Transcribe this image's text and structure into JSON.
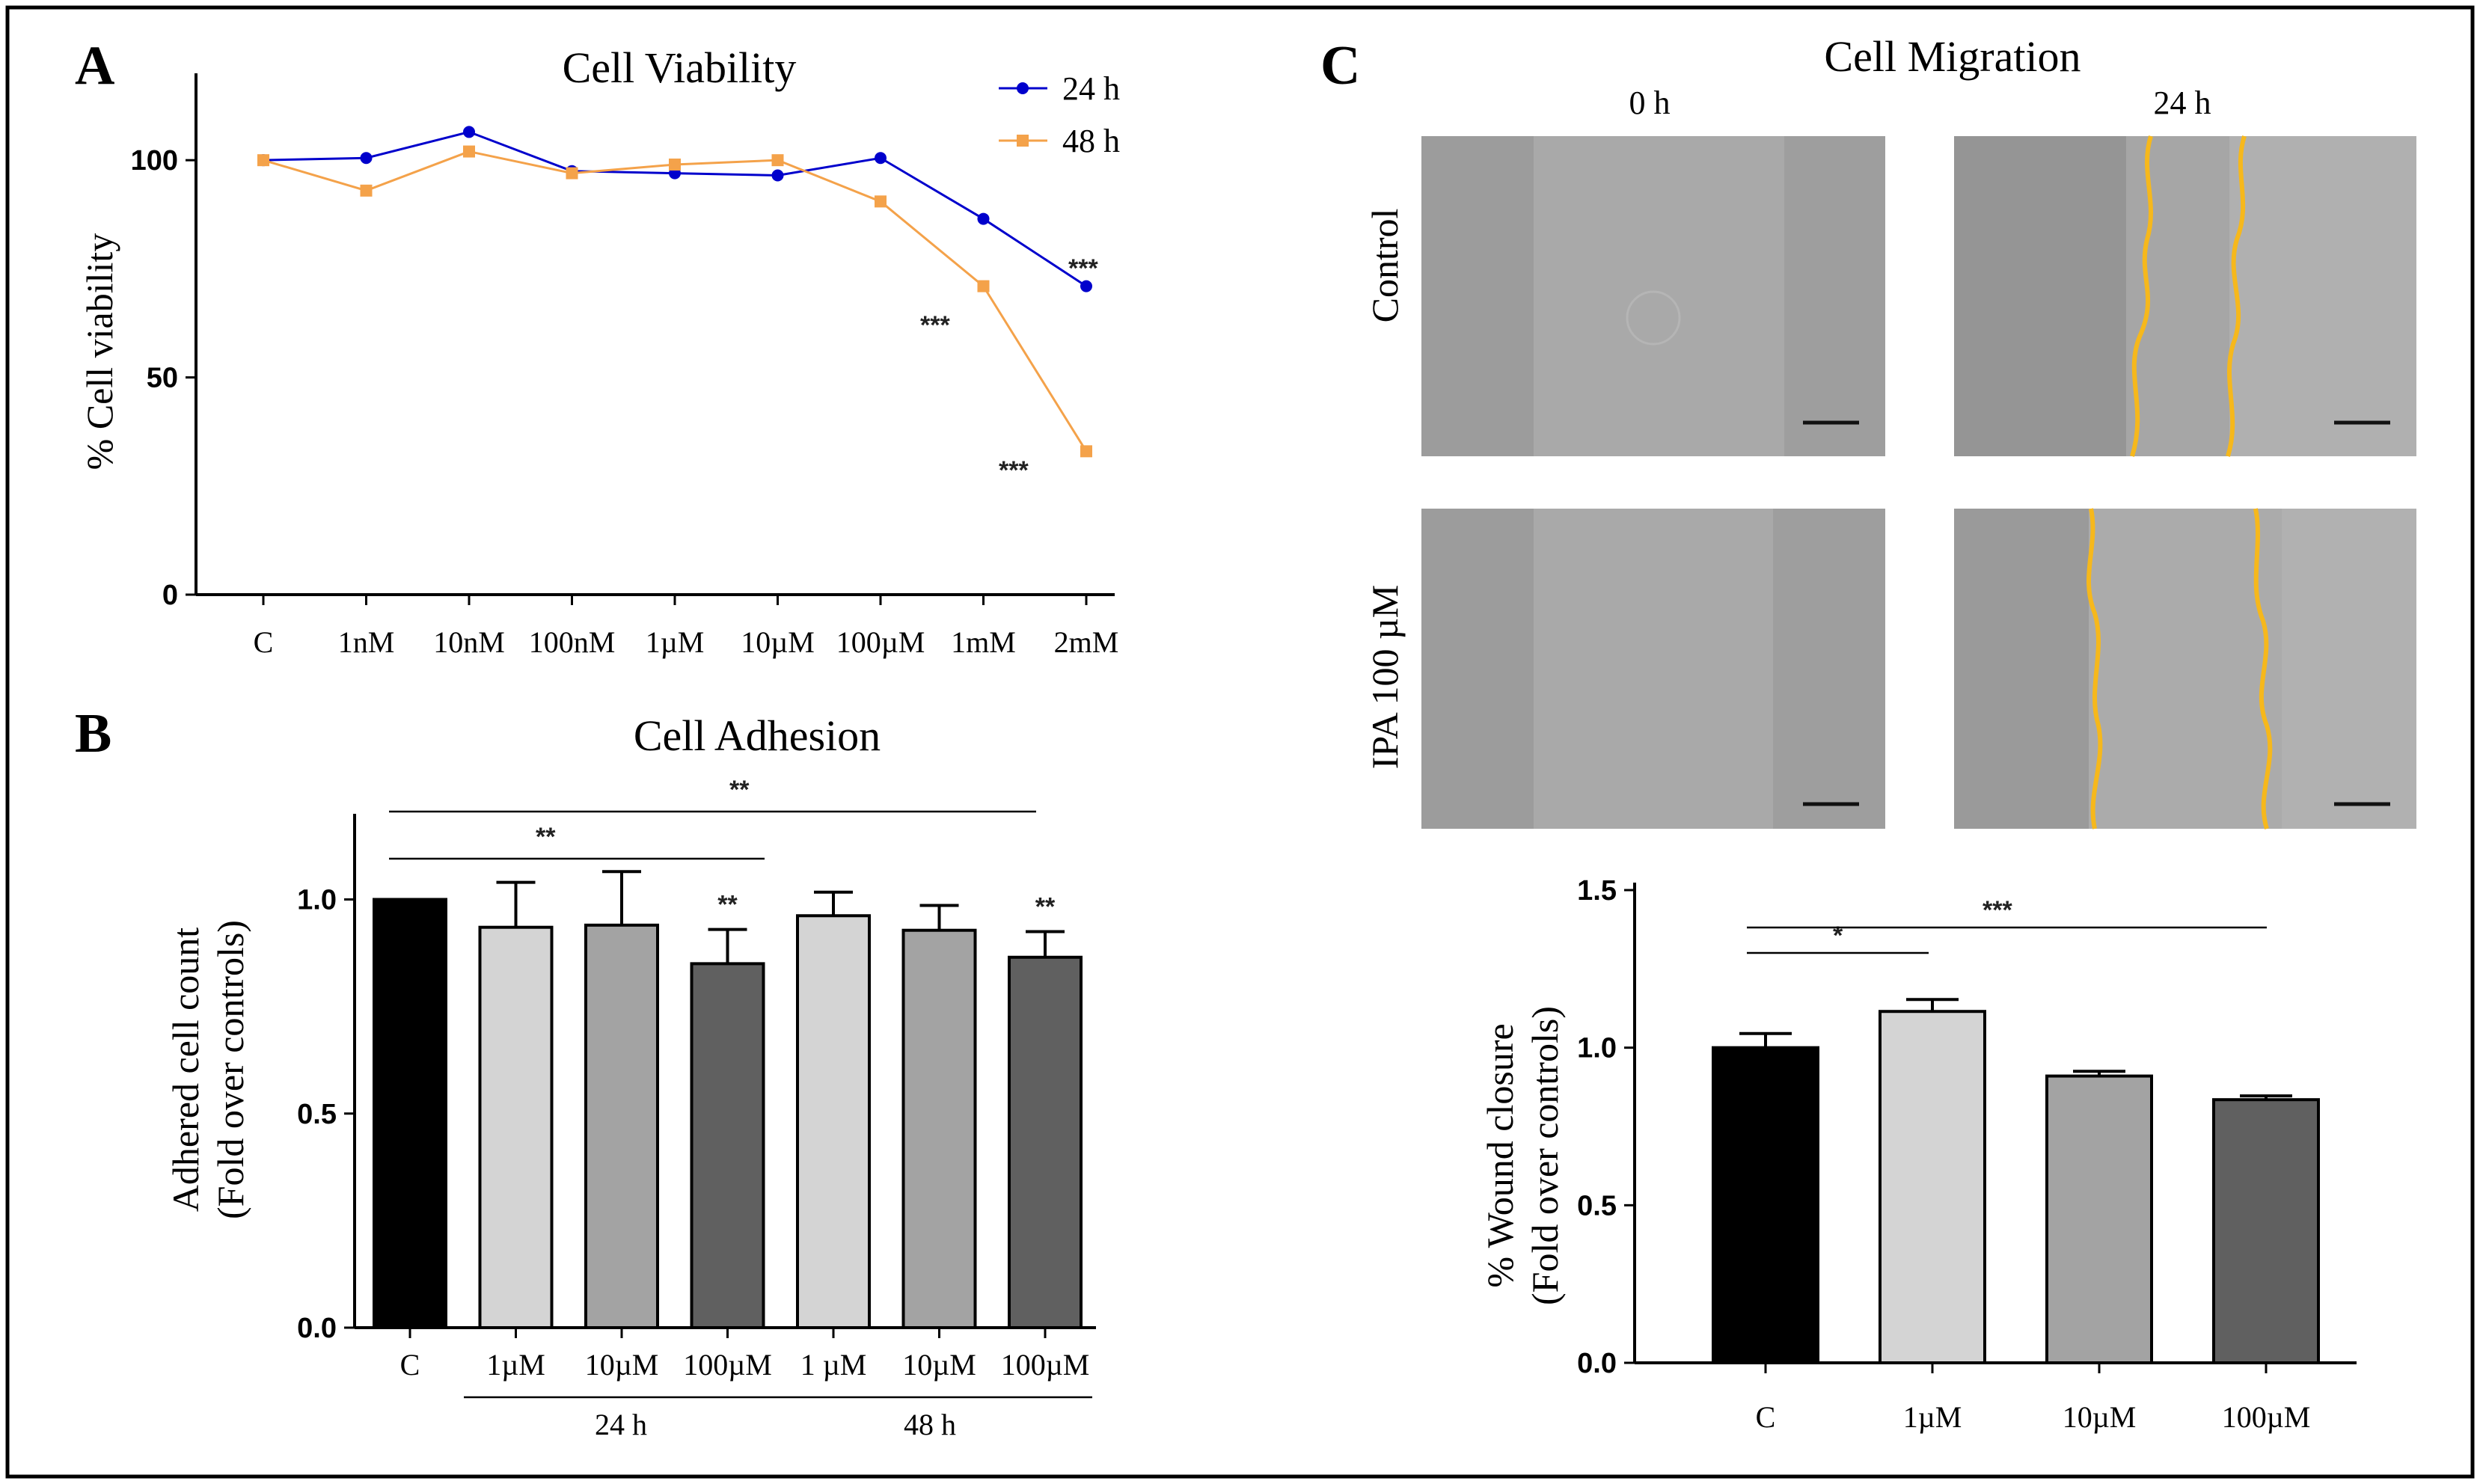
{
  "figure": {
    "colors": {
      "h24": "#0000cc",
      "h48": "#f4a24a",
      "black": "#000000",
      "light_gray": "#d4d4d4",
      "mid_gray": "#a3a3a3",
      "dark_gray": "#606060",
      "wound_line": "#f6b81c",
      "micro_bg": "#a9a9a9",
      "micro_cells": "#9a9a9a"
    }
  },
  "panelA": {
    "letter": "A",
    "legend": {
      "h24": "24 h",
      "h48": "48 h"
    },
    "significance": [
      "***",
      "***",
      "***"
    ]
  },
  "panelB": {
    "letter": "B",
    "ylabel_line1": "Adhered cell count",
    "ylabel_line2": "(Fold over controls)",
    "group_24": "24 h",
    "group_48": "48 h",
    "bracket_short": "**",
    "bracket_long": "**",
    "bar_stars": [
      "",
      "",
      "",
      "**",
      "",
      "",
      "**"
    ]
  },
  "panelC": {
    "letter": "C",
    "title": "Cell Migration",
    "col_0h": "0 h",
    "col_24h": "24 h",
    "row_control": "Control",
    "row_ipa": "IPA 100 µM",
    "ylabel_line1": "% Wound closure",
    "ylabel_line2": "(Fold over controls)",
    "bracket_short": "*",
    "bracket_long": "***"
  },
  "chart_data": [
    {
      "id": "viability",
      "type": "line",
      "title": "Cell Viability",
      "xlabel": "",
      "ylabel": "% Cell viability",
      "categories": [
        "C",
        "1nM",
        "10nM",
        "100nM",
        "1µM",
        "10µM",
        "100µM",
        "1mM",
        "2mM"
      ],
      "ylim": [
        0,
        120
      ],
      "yticks": [
        0,
        50,
        100
      ],
      "series": [
        {
          "name": "24 h",
          "values": [
            100,
            100.5,
            106.5,
            97.5,
            97,
            96.5,
            100.5,
            86.5,
            71
          ]
        },
        {
          "name": "48 h",
          "values": [
            100,
            93,
            102,
            97,
            99,
            100,
            90.5,
            71,
            33
          ]
        }
      ],
      "legend": "top-right"
    },
    {
      "id": "adhesion",
      "type": "bar",
      "title": "Cell Adhesion",
      "xlabel": "",
      "ylabel": "Adhered cell count (Fold over controls)",
      "categories": [
        "C",
        "1µM",
        "10µM",
        "100µM",
        "1 µM",
        "10µM",
        "100µM"
      ],
      "values": [
        1.0,
        0.935,
        0.94,
        0.85,
        0.962,
        0.928,
        0.865
      ],
      "errors": [
        0.0,
        0.105,
        0.125,
        0.08,
        0.055,
        0.058,
        0.06
      ],
      "ylim": [
        0,
        1.2
      ],
      "yticks": [
        "0.0",
        "0.5",
        "1.0"
      ]
    },
    {
      "id": "wound",
      "type": "bar",
      "title": "",
      "xlabel": "",
      "ylabel": "% Wound closure (Fold over controls)",
      "categories": [
        "C",
        "1µM",
        "10µM",
        "100µM"
      ],
      "values": [
        1.0,
        1.115,
        0.91,
        0.835
      ],
      "errors": [
        0.045,
        0.038,
        0.015,
        0.012
      ],
      "ylim": [
        0,
        1.5
      ],
      "yticks": [
        "0.0",
        "0.5",
        "1.0",
        "1.5"
      ]
    }
  ]
}
